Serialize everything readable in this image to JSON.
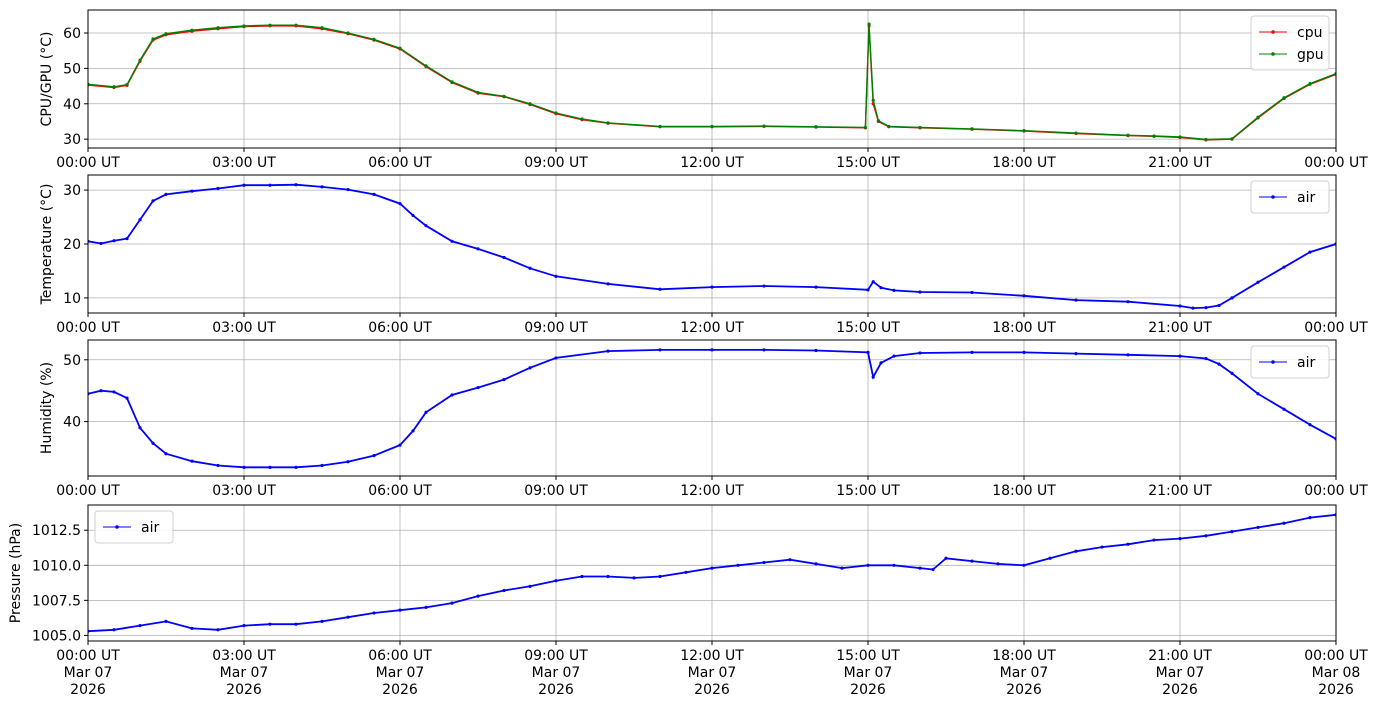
{
  "chart_data": [
    {
      "type": "line",
      "ylabel": "CPU/GPU (°C)",
      "xlabel": "",
      "xlim": [
        "2026-03-07 00:00",
        "2026-03-08 00:00"
      ],
      "ylim": [
        27.5,
        66.5
      ],
      "yticks": [
        30,
        40,
        50,
        60
      ],
      "xtick_labels": [
        "00:00 UT",
        "03:00 UT",
        "06:00 UT",
        "09:00 UT",
        "12:00 UT",
        "15:00 UT",
        "18:00 UT",
        "21:00 UT",
        "00:00 UT"
      ],
      "grid": true,
      "legend": "top-right",
      "x_hours": [
        0,
        0.5,
        0.75,
        1.0,
        1.25,
        1.5,
        2.0,
        2.5,
        3.0,
        3.5,
        4.0,
        4.5,
        5.0,
        5.5,
        6.0,
        6.5,
        7.0,
        7.5,
        8.0,
        8.5,
        9.0,
        9.5,
        10.0,
        11.0,
        12.0,
        13.0,
        14.0,
        14.95,
        15.02,
        15.1,
        15.2,
        15.4,
        16.0,
        17.0,
        18.0,
        19.0,
        20.0,
        20.5,
        21.0,
        21.5,
        22.0,
        22.5,
        23.0,
        23.5,
        24.0
      ],
      "series": [
        {
          "name": "cpu",
          "color": "#ff0000",
          "values": [
            45.3,
            44.6,
            45.2,
            52,
            58,
            59.5,
            60.5,
            61.2,
            61.8,
            62,
            62,
            61.2,
            59.8,
            58,
            55.5,
            50.5,
            46,
            43,
            42,
            39.8,
            37.2,
            35.5,
            34.5,
            33.5,
            33.5,
            33.6,
            33.4,
            33.2,
            62.0,
            40,
            35,
            33.5,
            33.2,
            32.8,
            32.3,
            31.6,
            31.0,
            30.8,
            30.5,
            29.8,
            30.0,
            36.0,
            41.5,
            45.5,
            48.3
          ]
        },
        {
          "name": "gpu",
          "color": "#008000",
          "values": [
            45.5,
            44.8,
            45.4,
            52.3,
            58.3,
            59.8,
            60.8,
            61.5,
            62.0,
            62.2,
            62.2,
            61.5,
            60.0,
            58.2,
            55.7,
            50.7,
            46.2,
            43.2,
            42.1,
            40.0,
            37.4,
            35.7,
            34.6,
            33.6,
            33.6,
            33.7,
            33.5,
            33.3,
            62.5,
            41,
            35.2,
            33.6,
            33.3,
            32.9,
            32.4,
            31.7,
            31.1,
            30.9,
            30.6,
            29.9,
            30.1,
            36.2,
            41.7,
            45.7,
            48.5
          ]
        }
      ]
    },
    {
      "type": "line",
      "ylabel": "Temperature (°C)",
      "xlabel": "",
      "xlim": [
        "2026-03-07 00:00",
        "2026-03-08 00:00"
      ],
      "ylim": [
        7.2,
        32.8
      ],
      "yticks": [
        10,
        20,
        30
      ],
      "xtick_labels": [
        "00:00 UT",
        "03:00 UT",
        "06:00 UT",
        "09:00 UT",
        "12:00 UT",
        "15:00 UT",
        "18:00 UT",
        "21:00 UT",
        "00:00 UT"
      ],
      "grid": true,
      "legend": "top-right",
      "x_hours": [
        0,
        0.25,
        0.5,
        0.75,
        1.0,
        1.25,
        1.5,
        2.0,
        2.5,
        3.0,
        3.5,
        4.0,
        4.5,
        5.0,
        5.5,
        6.0,
        6.25,
        6.5,
        7.0,
        7.5,
        8.0,
        8.5,
        9.0,
        10.0,
        11.0,
        12.0,
        13.0,
        14.0,
        15.0,
        15.1,
        15.25,
        15.5,
        16.0,
        17.0,
        18.0,
        19.0,
        20.0,
        21.0,
        21.25,
        21.5,
        21.75,
        22.0,
        22.5,
        23.0,
        23.5,
        24.0
      ],
      "series": [
        {
          "name": "air",
          "color": "#0000ff",
          "values": [
            20.5,
            20.1,
            20.6,
            21.0,
            24.5,
            28.0,
            29.2,
            29.8,
            30.3,
            30.9,
            30.9,
            31.0,
            30.6,
            30.1,
            29.2,
            27.5,
            25.3,
            23.4,
            20.5,
            19.1,
            17.5,
            15.5,
            14.0,
            12.6,
            11.6,
            12.0,
            12.2,
            12.0,
            11.5,
            13.0,
            11.9,
            11.4,
            11.1,
            11.0,
            10.4,
            9.6,
            9.3,
            8.5,
            8.1,
            8.2,
            8.6,
            10.0,
            12.9,
            15.7,
            18.5,
            20.0
          ]
        }
      ]
    },
    {
      "type": "line",
      "ylabel": "Humidity (%)",
      "xlabel": "",
      "xlim": [
        "2026-03-07 00:00",
        "2026-03-08 00:00"
      ],
      "ylim": [
        31.2,
        53.2
      ],
      "yticks": [
        40,
        50
      ],
      "xtick_labels": [
        "00:00 UT",
        "03:00 UT",
        "06:00 UT",
        "09:00 UT",
        "12:00 UT",
        "15:00 UT",
        "18:00 UT",
        "21:00 UT",
        "00:00 UT"
      ],
      "grid": true,
      "legend": "top-right",
      "x_hours": [
        0,
        0.25,
        0.5,
        0.75,
        1.0,
        1.25,
        1.5,
        2.0,
        2.5,
        3.0,
        3.5,
        4.0,
        4.5,
        5.0,
        5.5,
        6.0,
        6.25,
        6.5,
        7.0,
        7.5,
        8.0,
        8.5,
        9.0,
        10.0,
        11.0,
        12.0,
        13.0,
        14.0,
        15.0,
        15.1,
        15.25,
        15.5,
        16.0,
        17.0,
        18.0,
        19.0,
        20.0,
        21.0,
        21.5,
        21.75,
        22.0,
        22.5,
        23.0,
        23.5,
        24.0
      ],
      "series": [
        {
          "name": "air",
          "color": "#0000ff",
          "values": [
            44.5,
            45.0,
            44.8,
            43.8,
            39.0,
            36.5,
            34.8,
            33.6,
            32.9,
            32.6,
            32.6,
            32.6,
            32.9,
            33.5,
            34.5,
            36.2,
            38.5,
            41.5,
            44.3,
            45.5,
            46.8,
            48.7,
            50.3,
            51.4,
            51.6,
            51.6,
            51.6,
            51.5,
            51.2,
            47.2,
            49.5,
            50.6,
            51.1,
            51.2,
            51.2,
            51.0,
            50.8,
            50.6,
            50.2,
            49.3,
            47.8,
            44.5,
            42.0,
            39.5,
            37.2
          ]
        }
      ]
    },
    {
      "type": "line",
      "ylabel": "Pressure (hPa)",
      "xlabel": "",
      "xlim": [
        "2026-03-07 00:00",
        "2026-03-08 00:00"
      ],
      "ylim": [
        1004.6,
        1014.3
      ],
      "yticks": [
        1005.0,
        1007.5,
        1010.0,
        1012.5
      ],
      "ytick_labels": [
        "1005.0",
        "1007.5",
        "1010.0",
        "1012.5"
      ],
      "xtick_labels": [
        "00:00 UT\nMar 07\n2026",
        "03:00 UT\nMar 07\n2026",
        "06:00 UT\nMar 07\n2026",
        "09:00 UT\nMar 07\n2026",
        "12:00 UT\nMar 07\n2026",
        "15:00 UT\nMar 07\n2026",
        "18:00 UT\nMar 07\n2026",
        "21:00 UT\nMar 07\n2026",
        "00:00 UT\nMar 08\n2026"
      ],
      "grid": true,
      "legend": "top-left",
      "x_hours": [
        0,
        0.5,
        1.0,
        1.5,
        2.0,
        2.5,
        3.0,
        3.5,
        4.0,
        4.5,
        5.0,
        5.5,
        6.0,
        6.5,
        7.0,
        7.5,
        8.0,
        8.5,
        9.0,
        9.5,
        10.0,
        10.5,
        11.0,
        11.5,
        12.0,
        12.5,
        13.0,
        13.5,
        14.0,
        14.5,
        15.0,
        15.5,
        16.0,
        16.25,
        16.5,
        17.0,
        17.5,
        18.0,
        18.5,
        19.0,
        19.5,
        20.0,
        20.5,
        21.0,
        21.5,
        22.0,
        22.5,
        23.0,
        23.5,
        24.0
      ],
      "series": [
        {
          "name": "air",
          "color": "#0000ff",
          "values": [
            1005.3,
            1005.4,
            1005.7,
            1006.0,
            1005.5,
            1005.4,
            1005.7,
            1005.8,
            1005.8,
            1006.0,
            1006.3,
            1006.6,
            1006.8,
            1007.0,
            1007.3,
            1007.8,
            1008.2,
            1008.5,
            1008.9,
            1009.2,
            1009.2,
            1009.1,
            1009.2,
            1009.5,
            1009.8,
            1010.0,
            1010.2,
            1010.4,
            1010.1,
            1009.8,
            1010.0,
            1010.0,
            1009.8,
            1009.7,
            1010.5,
            1010.3,
            1010.1,
            1010.0,
            1010.5,
            1011.0,
            1011.3,
            1011.5,
            1011.8,
            1011.9,
            1012.1,
            1012.4,
            1012.7,
            1013.0,
            1013.4,
            1013.6
          ]
        }
      ]
    }
  ]
}
